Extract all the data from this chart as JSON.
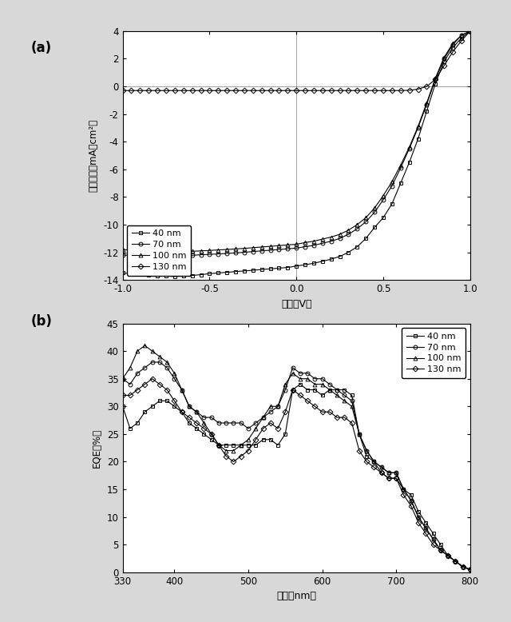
{
  "fig_width": 6.4,
  "fig_height": 7.78,
  "background_color": "#d8d8d8",
  "panel_a": {
    "label": "(a)",
    "xlabel": "電圧（V）",
    "ylabel": "電流密度（mA／cm²）",
    "xlim": [
      -1.0,
      1.0
    ],
    "ylim": [
      -14,
      4
    ],
    "yticks": [
      -14,
      -12,
      -10,
      -8,
      -6,
      -4,
      -2,
      0,
      2,
      4
    ],
    "xticks": [
      -1.0,
      -0.5,
      0.0,
      0.5,
      1.0
    ],
    "xtick_labels": [
      "-1.0",
      "-0.5",
      "0.0",
      "0.5",
      "1.0"
    ],
    "legend_labels": [
      "40 nm",
      "70 nm",
      "100 nm",
      "130 nm"
    ],
    "legend_markers": [
      "s",
      "o",
      "^",
      "D"
    ],
    "series": {
      "40nm": {
        "V": [
          -1.0,
          -0.95,
          -0.9,
          -0.85,
          -0.8,
          -0.75,
          -0.7,
          -0.65,
          -0.6,
          -0.55,
          -0.5,
          -0.45,
          -0.4,
          -0.35,
          -0.3,
          -0.25,
          -0.2,
          -0.15,
          -0.1,
          -0.05,
          0.0,
          0.05,
          0.1,
          0.15,
          0.2,
          0.25,
          0.3,
          0.35,
          0.4,
          0.45,
          0.5,
          0.55,
          0.6,
          0.65,
          0.7,
          0.75,
          0.8,
          0.85,
          0.9,
          0.95,
          1.0
        ],
        "J": [
          -13.5,
          -13.55,
          -13.6,
          -13.65,
          -13.7,
          -13.72,
          -13.75,
          -13.72,
          -13.68,
          -13.62,
          -13.55,
          -13.5,
          -13.45,
          -13.4,
          -13.35,
          -13.3,
          -13.25,
          -13.2,
          -13.15,
          -13.1,
          -13.0,
          -12.9,
          -12.8,
          -12.65,
          -12.5,
          -12.3,
          -12.0,
          -11.6,
          -11.0,
          -10.2,
          -9.5,
          -8.5,
          -7.0,
          -5.5,
          -3.8,
          -1.8,
          0.2,
          1.8,
          2.8,
          3.5,
          4.0
        ]
      },
      "70nm": {
        "V": [
          -1.0,
          -0.95,
          -0.9,
          -0.85,
          -0.8,
          -0.75,
          -0.7,
          -0.65,
          -0.6,
          -0.55,
          -0.5,
          -0.45,
          -0.4,
          -0.35,
          -0.3,
          -0.25,
          -0.2,
          -0.15,
          -0.1,
          -0.05,
          0.0,
          0.05,
          0.1,
          0.15,
          0.2,
          0.25,
          0.3,
          0.35,
          0.4,
          0.45,
          0.5,
          0.55,
          0.6,
          0.65,
          0.7,
          0.75,
          0.8,
          0.85,
          0.9,
          0.95,
          1.0
        ],
        "J": [
          -12.2,
          -12.22,
          -12.25,
          -12.27,
          -12.28,
          -12.28,
          -12.27,
          -12.25,
          -12.22,
          -12.18,
          -12.15,
          -12.12,
          -12.08,
          -12.05,
          -12.0,
          -11.95,
          -11.9,
          -11.85,
          -11.8,
          -11.75,
          -11.7,
          -11.6,
          -11.5,
          -11.35,
          -11.2,
          -11.0,
          -10.7,
          -10.3,
          -9.8,
          -9.1,
          -8.2,
          -7.2,
          -5.9,
          -4.5,
          -3.0,
          -1.3,
          0.5,
          2.0,
          3.0,
          3.7,
          4.0
        ]
      },
      "100nm": {
        "V": [
          -1.0,
          -0.95,
          -0.9,
          -0.85,
          -0.8,
          -0.75,
          -0.7,
          -0.65,
          -0.6,
          -0.55,
          -0.5,
          -0.45,
          -0.4,
          -0.35,
          -0.3,
          -0.25,
          -0.2,
          -0.15,
          -0.1,
          -0.05,
          0.0,
          0.05,
          0.1,
          0.15,
          0.2,
          0.25,
          0.3,
          0.35,
          0.4,
          0.45,
          0.5,
          0.55,
          0.6,
          0.65,
          0.7,
          0.75,
          0.8,
          0.85,
          0.9,
          0.95,
          1.0
        ],
        "J": [
          -11.8,
          -11.85,
          -11.9,
          -11.93,
          -11.95,
          -11.96,
          -11.96,
          -11.95,
          -11.93,
          -11.9,
          -11.87,
          -11.83,
          -11.8,
          -11.76,
          -11.72,
          -11.67,
          -11.62,
          -11.57,
          -11.52,
          -11.47,
          -11.42,
          -11.3,
          -11.2,
          -11.05,
          -10.9,
          -10.7,
          -10.4,
          -10.0,
          -9.5,
          -8.8,
          -7.9,
          -6.9,
          -5.7,
          -4.4,
          -2.9,
          -1.2,
          0.6,
          2.1,
          3.1,
          3.7,
          4.0
        ]
      },
      "130nm": {
        "V": [
          -1.0,
          -0.95,
          -0.9,
          -0.85,
          -0.8,
          -0.75,
          -0.7,
          -0.65,
          -0.6,
          -0.55,
          -0.5,
          -0.45,
          -0.4,
          -0.35,
          -0.3,
          -0.25,
          -0.2,
          -0.15,
          -0.1,
          -0.05,
          0.0,
          0.05,
          0.1,
          0.15,
          0.2,
          0.25,
          0.3,
          0.35,
          0.4,
          0.45,
          0.5,
          0.55,
          0.6,
          0.65,
          0.7,
          0.75,
          0.8,
          0.85,
          0.9,
          0.95,
          1.0
        ],
        "J": [
          -0.3,
          -0.3,
          -0.3,
          -0.3,
          -0.3,
          -0.3,
          -0.3,
          -0.3,
          -0.3,
          -0.3,
          -0.3,
          -0.3,
          -0.3,
          -0.3,
          -0.3,
          -0.3,
          -0.3,
          -0.3,
          -0.3,
          -0.3,
          -0.3,
          -0.3,
          -0.3,
          -0.3,
          -0.3,
          -0.3,
          -0.3,
          -0.3,
          -0.3,
          -0.3,
          -0.3,
          -0.3,
          -0.3,
          -0.28,
          -0.2,
          0.0,
          0.5,
          1.5,
          2.5,
          3.3,
          4.0
        ]
      }
    }
  },
  "panel_b": {
    "label": "(b)",
    "xlabel": "波長（nm）",
    "ylabel": "EQE（%）",
    "xlim": [
      330,
      800
    ],
    "ylim": [
      0,
      45
    ],
    "yticks": [
      0,
      5,
      10,
      15,
      20,
      25,
      30,
      35,
      40,
      45
    ],
    "xticks": [
      330,
      400,
      500,
      600,
      700,
      800
    ],
    "xtick_labels": [
      "330",
      "400",
      "500",
      "600",
      "700",
      "800"
    ],
    "legend_labels": [
      "40 nm",
      "70 nm",
      "100 nm",
      "130 nm"
    ],
    "legend_markers": [
      "s",
      "o",
      "^",
      "D"
    ],
    "series": {
      "40nm": {
        "wl": [
          330,
          340,
          350,
          360,
          370,
          380,
          390,
          400,
          410,
          420,
          430,
          440,
          450,
          460,
          470,
          480,
          490,
          500,
          510,
          520,
          530,
          540,
          550,
          560,
          570,
          580,
          590,
          600,
          610,
          620,
          630,
          640,
          650,
          660,
          670,
          680,
          690,
          700,
          710,
          720,
          730,
          740,
          750,
          760,
          770,
          780,
          790,
          800
        ],
        "eqe": [
          30,
          26,
          27,
          29,
          30,
          31,
          31,
          30,
          29,
          27,
          26,
          25,
          24,
          23,
          23,
          23,
          23,
          23,
          23,
          24,
          24,
          23,
          25,
          33,
          34,
          33,
          33,
          32,
          33,
          33,
          33,
          32,
          25,
          21,
          20,
          18,
          17,
          17,
          15,
          14,
          11,
          9,
          7,
          5,
          3,
          2,
          1,
          0.5
        ]
      },
      "70nm": {
        "wl": [
          330,
          340,
          350,
          360,
          370,
          380,
          390,
          400,
          410,
          420,
          430,
          440,
          450,
          460,
          470,
          480,
          490,
          500,
          510,
          520,
          530,
          540,
          550,
          560,
          570,
          580,
          590,
          600,
          610,
          620,
          630,
          640,
          650,
          660,
          670,
          680,
          690,
          700,
          710,
          720,
          730,
          740,
          750,
          760,
          770,
          780,
          790,
          800
        ],
        "eqe": [
          35,
          34,
          36,
          37,
          38,
          38,
          37,
          35,
          33,
          30,
          29,
          28,
          28,
          27,
          27,
          27,
          27,
          26,
          27,
          28,
          29,
          30,
          33,
          37,
          36,
          36,
          35,
          35,
          34,
          33,
          32,
          31,
          25,
          22,
          20,
          19,
          18,
          18,
          15,
          13,
          10,
          8,
          6,
          4,
          3,
          2,
          1,
          0.5
        ]
      },
      "100nm": {
        "wl": [
          330,
          340,
          350,
          360,
          370,
          380,
          390,
          400,
          410,
          420,
          430,
          440,
          450,
          460,
          470,
          480,
          490,
          500,
          510,
          520,
          530,
          540,
          550,
          560,
          570,
          580,
          590,
          600,
          610,
          620,
          630,
          640,
          650,
          660,
          670,
          680,
          690,
          700,
          710,
          720,
          730,
          740,
          750,
          760,
          770,
          780,
          790,
          800
        ],
        "eqe": [
          35,
          37,
          40,
          41,
          40,
          39,
          38,
          36,
          33,
          30,
          29,
          27,
          25,
          23,
          22,
          22,
          23,
          24,
          26,
          28,
          30,
          30,
          34,
          36,
          35,
          35,
          34,
          34,
          33,
          32,
          31,
          30,
          25,
          22,
          20,
          19,
          18,
          18,
          15,
          13,
          10,
          8,
          6,
          4,
          3,
          2,
          1,
          0.5
        ]
      },
      "130nm": {
        "wl": [
          330,
          340,
          350,
          360,
          370,
          380,
          390,
          400,
          410,
          420,
          430,
          440,
          450,
          460,
          470,
          480,
          490,
          500,
          510,
          520,
          530,
          540,
          550,
          560,
          570,
          580,
          590,
          600,
          610,
          620,
          630,
          640,
          650,
          660,
          670,
          680,
          690,
          700,
          710,
          720,
          730,
          740,
          750,
          760,
          770,
          780,
          790,
          800
        ],
        "eqe": [
          32,
          32,
          33,
          34,
          35,
          34,
          33,
          31,
          29,
          28,
          27,
          26,
          25,
          23,
          21,
          20,
          21,
          22,
          24,
          26,
          27,
          26,
          29,
          33,
          32,
          31,
          30,
          29,
          29,
          28,
          28,
          27,
          22,
          20,
          19,
          18,
          17,
          17,
          14,
          12,
          9,
          7,
          5,
          4,
          3,
          2,
          1,
          0.5
        ]
      }
    }
  }
}
